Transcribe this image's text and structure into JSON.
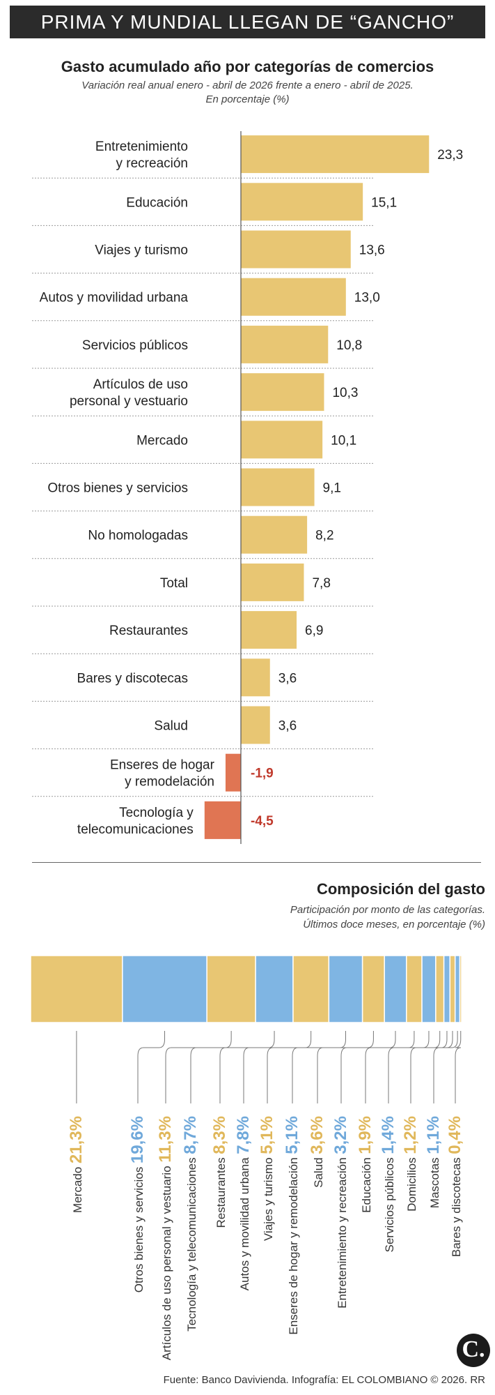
{
  "header": {
    "title": "PRIMA Y MUNDIAL LLEGAN DE “GANCHO”"
  },
  "chart1": {
    "title": "Gasto acumulado año por categorías de comercios",
    "subtitle_1": "Variación real anual enero - abril de 2026 frente a enero - abril de 2025.",
    "subtitle_2": "En porcentaje (%)"
  },
  "chart2": {
    "title": "Composición del gasto",
    "subtitle_1": "Participación por monto de las categorías.",
    "subtitle_2": "Últimos doce meses, en porcentaje (%)"
  },
  "chart_data": [
    {
      "type": "bar",
      "orientation": "horizontal",
      "title": "Gasto acumulado año por categorías de comercios",
      "categories": [
        "Entretenimiento y recreación",
        "Educación",
        "Viajes y turismo",
        "Autos y movilidad urbana",
        "Servicios públicos",
        "Artículos de uso personal y vestuario",
        "Mercado",
        "Otros bienes y servicios",
        "No homologadas",
        "Total",
        "Restaurantes",
        "Bares y discotecas",
        "Salud",
        "Enseres de hogar y remodelación",
        "Tecnología y telecomunicaciones"
      ],
      "category_lines": [
        [
          "Entretenimiento",
          "y recreación"
        ],
        [
          "Educación"
        ],
        [
          "Viajes y turismo"
        ],
        [
          "Autos y movilidad urbana"
        ],
        [
          "Servicios públicos"
        ],
        [
          "Artículos de uso",
          "personal y vestuario"
        ],
        [
          "Mercado"
        ],
        [
          "Otros bienes y servicios"
        ],
        [
          "No homologadas"
        ],
        [
          "Total"
        ],
        [
          "Restaurantes"
        ],
        [
          "Bares y discotecas"
        ],
        [
          "Salud"
        ],
        [
          "Enseres de hogar",
          "y remodelación"
        ],
        [
          "Tecnología y",
          "telecomunicaciones"
        ]
      ],
      "values": [
        23.3,
        15.1,
        13.6,
        13.0,
        10.8,
        10.3,
        10.1,
        9.1,
        8.2,
        7.8,
        6.9,
        3.6,
        3.6,
        -1.9,
        -4.5
      ],
      "value_labels": [
        "23,3",
        "15,1",
        "13,6",
        "13,0",
        "10,8",
        "10,3",
        "10,1",
        "9,1",
        "8,2",
        "7,8",
        "6,9",
        "3,6",
        "3,6",
        "-1,9",
        "-4,5"
      ],
      "colors": {
        "positive": "#e8c673",
        "negative": "#e07553",
        "negative_label": "#c0392b"
      }
    },
    {
      "type": "bar",
      "orientation": "stacked-horizontal",
      "title": "Composición del gasto",
      "categories": [
        "Mercado",
        "Otros bienes y servicios",
        "Artículos de uso personal y vestuario",
        "Tecnología y telecomunicaciones",
        "Restaurantes",
        "Autos y movilidad urbana",
        "Viajes y turismo",
        "Enseres de hogar y remodelación",
        "Salud",
        "Entretenimiento y recreación",
        "Educación",
        "Servicios públicos",
        "Domicilios",
        "Mascotas",
        "Bares y discotecas"
      ],
      "values": [
        21.3,
        19.6,
        11.3,
        8.7,
        8.3,
        7.8,
        5.1,
        5.1,
        3.6,
        3.2,
        1.9,
        1.4,
        1.2,
        1.1,
        0.4
      ],
      "value_labels": [
        "21,3%",
        "19,6%",
        "11,3%",
        "8,7%",
        "8,3%",
        "7,8%",
        "5,1%",
        "5,1%",
        "3,6%",
        "3,2%",
        "1,9%",
        "1,4%",
        "1,2%",
        "1,1%",
        "0,4%"
      ],
      "segment_colors": [
        "#e8c673",
        "#7fb5e3",
        "#e8c673",
        "#7fb5e3",
        "#e8c673",
        "#7fb5e3",
        "#e8c673",
        "#7fb5e3",
        "#e8c673",
        "#7fb5e3",
        "#e8c673",
        "#7fb5e3",
        "#e8c673",
        "#7fb5e3",
        "#e8c673"
      ]
    }
  ],
  "footer": {
    "source": "Fuente: Banco Davivienda. Infografía: EL COLOMBIANO © 2026. RR",
    "logo": "C."
  }
}
